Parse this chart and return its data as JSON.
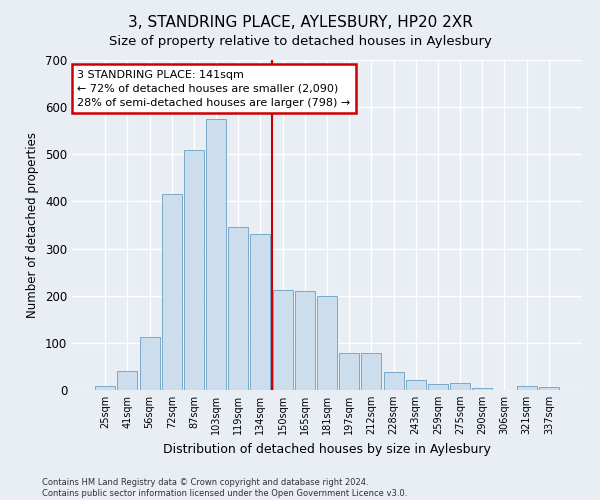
{
  "title": "3, STANDRING PLACE, AYLESBURY, HP20 2XR",
  "subtitle": "Size of property relative to detached houses in Aylesbury",
  "xlabel": "Distribution of detached houses by size in Aylesbury",
  "ylabel": "Number of detached properties",
  "categories": [
    "25sqm",
    "41sqm",
    "56sqm",
    "72sqm",
    "87sqm",
    "103sqm",
    "119sqm",
    "134sqm",
    "150sqm",
    "165sqm",
    "181sqm",
    "197sqm",
    "212sqm",
    "228sqm",
    "243sqm",
    "259sqm",
    "275sqm",
    "290sqm",
    "306sqm",
    "321sqm",
    "337sqm"
  ],
  "values": [
    8,
    40,
    112,
    415,
    510,
    575,
    345,
    330,
    212,
    210,
    200,
    78,
    78,
    38,
    22,
    13,
    15,
    5,
    1,
    8,
    7
  ],
  "bar_color": "#ccdded",
  "bar_edge_color": "#7aaac8",
  "vline_color": "#cc0000",
  "annotation_text_line1": "3 STANDRING PLACE: 141sqm",
  "annotation_text_line2": "← 72% of detached houses are smaller (2,090)",
  "annotation_text_line3": "28% of semi-detached houses are larger (798) →",
  "annotation_box_color": "#ffffff",
  "annotation_box_edge_color": "#cc0000",
  "ylim": [
    0,
    700
  ],
  "yticks": [
    0,
    100,
    200,
    300,
    400,
    500,
    600,
    700
  ],
  "footer_line1": "Contains HM Land Registry data © Crown copyright and database right 2024.",
  "footer_line2": "Contains public sector information licensed under the Open Government Licence v3.0.",
  "bg_color": "#e8eef4",
  "plot_bg_color": "#e8eef4",
  "grid_color": "#ffffff",
  "title_fontsize": 11,
  "subtitle_fontsize": 9.5,
  "vline_x": 7.5
}
